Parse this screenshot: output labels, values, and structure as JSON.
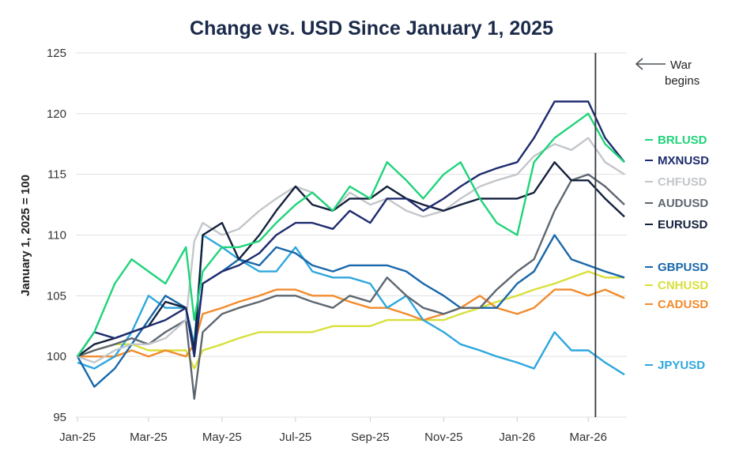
{
  "chart_data": {
    "type": "line",
    "title": "Change vs. USD Since January 1, 2025",
    "xlabel": "",
    "ylabel": "January 1, 2025 = 100",
    "ylim": [
      95,
      125
    ],
    "yticks": [
      "95",
      "100",
      "105",
      "110",
      "115",
      "120",
      "125"
    ],
    "xticks": [
      {
        "label": "Jan-25",
        "date": "2025-01-01"
      },
      {
        "label": "Mar-25",
        "date": "2025-03-01"
      },
      {
        "label": "May-25",
        "date": "2025-05-01"
      },
      {
        "label": "Jul-25",
        "date": "2025-07-01"
      },
      {
        "label": "Sep-25",
        "date": "2025-09-01"
      },
      {
        "label": "Nov-25",
        "date": "2025-11-01"
      },
      {
        "label": "Jan-26",
        "date": "2026-01-01"
      },
      {
        "label": "Mar-26",
        "date": "2026-03-01"
      }
    ],
    "grid": "horizontal",
    "legend": "right",
    "annotation": {
      "text_line1": "War",
      "text_line2": "begins",
      "date": "2026-03-07"
    },
    "x": [
      "2025-01-01",
      "2025-01-15",
      "2025-02-01",
      "2025-02-15",
      "2025-03-01",
      "2025-03-15",
      "2025-04-01",
      "2025-04-08",
      "2025-04-15",
      "2025-05-01",
      "2025-05-15",
      "2025-06-01",
      "2025-06-15",
      "2025-07-01",
      "2025-07-15",
      "2025-08-01",
      "2025-08-15",
      "2025-09-01",
      "2025-09-15",
      "2025-10-01",
      "2025-10-15",
      "2025-11-01",
      "2025-11-15",
      "2025-12-01",
      "2025-12-15",
      "2026-01-01",
      "2026-01-15",
      "2026-02-01",
      "2026-02-15",
      "2026-03-01",
      "2026-03-15",
      "2026-03-31"
    ],
    "series": [
      {
        "name": "BRLUSD",
        "color": "#1fd47a",
        "values": [
          100,
          102,
          106,
          108,
          107,
          106,
          109,
          103,
          107,
          109,
          109,
          109.5,
          111,
          112.5,
          113.5,
          112,
          114,
          113,
          116,
          114.5,
          113,
          115,
          116,
          113,
          111,
          110,
          116,
          118,
          119,
          120,
          117.5,
          116
        ]
      },
      {
        "name": "MXNUSD",
        "color": "#1e2c6e",
        "values": [
          100,
          102,
          101.5,
          102,
          102.5,
          103,
          104,
          100,
          106,
          107,
          107.5,
          108.5,
          110,
          111,
          111,
          110.5,
          112,
          111,
          113,
          113,
          112,
          113,
          114,
          115,
          115.5,
          116,
          118,
          121,
          121,
          121,
          118,
          116
        ]
      },
      {
        "name": "CHFUSD",
        "color": "#c3c6ca",
        "values": [
          100,
          99.5,
          100.5,
          101,
          101,
          101.5,
          103,
          109.5,
          111,
          110,
          110.5,
          112,
          113,
          114,
          113.5,
          112,
          113.5,
          112.5,
          113,
          112,
          111.5,
          112,
          113,
          114,
          114.5,
          115,
          116.5,
          117.5,
          117,
          118,
          116,
          115
        ]
      },
      {
        "name": "AUDUSD",
        "color": "#5d6670",
        "values": [
          100,
          100.5,
          101,
          101.5,
          101,
          102,
          103,
          96.5,
          102,
          103.5,
          104,
          104.5,
          105,
          105,
          104.5,
          104,
          105,
          104.5,
          106.5,
          105,
          104,
          103.5,
          104,
          104,
          105.5,
          107,
          108,
          112,
          114.5,
          115,
          114,
          112.5
        ]
      },
      {
        "name": "EURUSD",
        "color": "#14213d",
        "values": [
          100,
          101,
          101.5,
          102,
          102.5,
          104.5,
          104,
          100.5,
          110,
          111,
          108,
          110,
          112,
          114,
          112.5,
          112,
          113,
          113,
          114,
          113,
          112.5,
          112,
          112.5,
          113,
          113,
          113,
          113.5,
          116,
          114.5,
          114.5,
          113,
          111.5
        ]
      },
      {
        "name": "GBPUSD",
        "color": "#1867aa",
        "values": [
          100,
          97.5,
          99,
          101,
          103,
          105,
          104,
          100.5,
          106,
          107,
          108,
          107.5,
          109,
          108.5,
          107.5,
          107,
          107.5,
          107.5,
          107.5,
          107,
          106,
          105,
          104,
          104,
          104,
          106,
          107,
          110,
          108,
          107.5,
          107,
          106.5
        ]
      },
      {
        "name": "CNHUSD",
        "color": "#d8e03a",
        "values": [
          100,
          100.5,
          101,
          101,
          100.5,
          100.5,
          100.5,
          99,
          100.5,
          101,
          101.5,
          102,
          102,
          102,
          102,
          102.5,
          102.5,
          102.5,
          103,
          103,
          103,
          103,
          103.5,
          104,
          104.5,
          105,
          105.5,
          106,
          106.5,
          107,
          106.5,
          106.5
        ]
      },
      {
        "name": "CADUSD",
        "color": "#f28b2c",
        "values": [
          100,
          100,
          100,
          100.5,
          100,
          100.5,
          100,
          101,
          103.5,
          104,
          104.5,
          105,
          105.5,
          105.5,
          105,
          105,
          104.5,
          104,
          104,
          103.5,
          103,
          103.5,
          104,
          105,
          104,
          103.5,
          104,
          105.5,
          105.5,
          105,
          105.5,
          104.8
        ]
      },
      {
        "name": "JPYUSD",
        "color": "#2ea7dd",
        "values": [
          99.5,
          99,
          100,
          102,
          105,
          104,
          104,
          101,
          110,
          109,
          108,
          107,
          107,
          109,
          107,
          106.5,
          106.5,
          106,
          104,
          105,
          103,
          102,
          101,
          100.5,
          100,
          99.5,
          99,
          102,
          100.5,
          100.5,
          99.5,
          98.5
        ]
      }
    ]
  }
}
